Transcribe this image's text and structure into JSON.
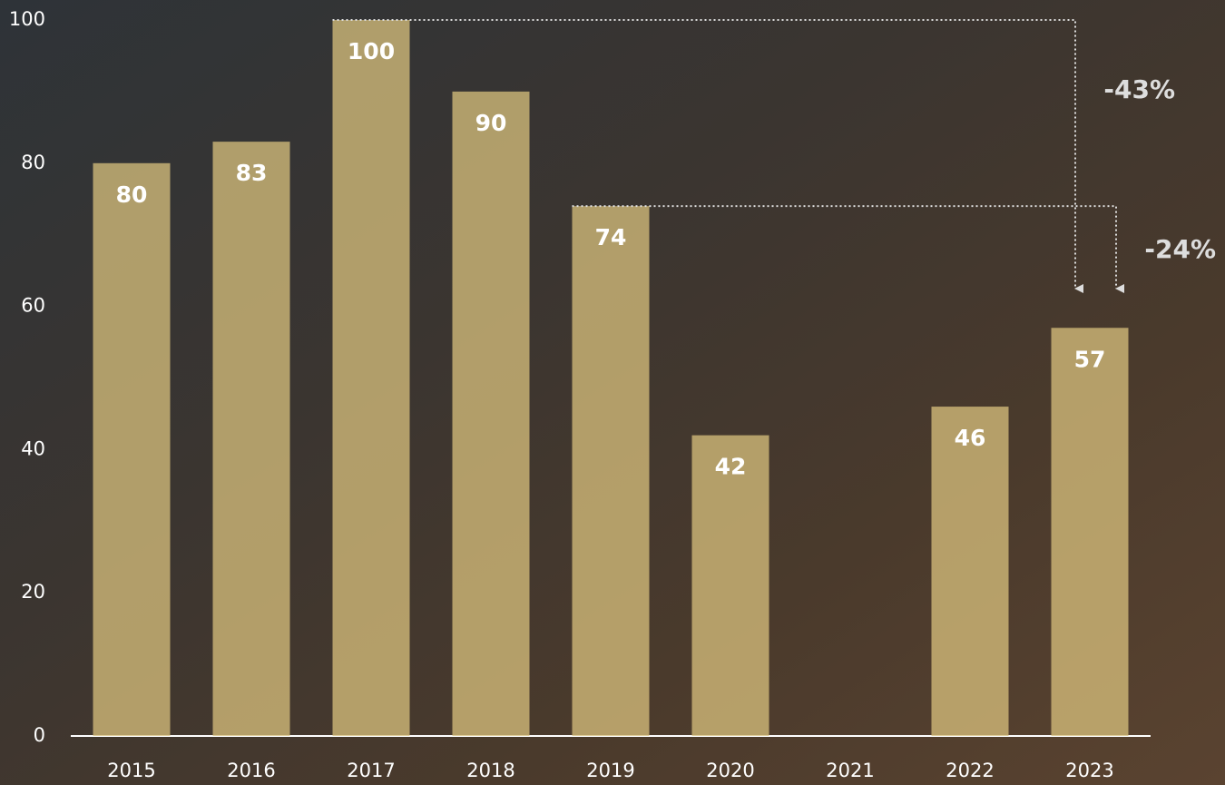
{
  "chart_data": {
    "type": "bar",
    "categories": [
      "2015",
      "2016",
      "2017",
      "2018",
      "2019",
      "2020",
      "2021",
      "2022",
      "2023"
    ],
    "values": [
      80,
      83,
      100,
      90,
      74,
      42,
      null,
      46,
      57
    ],
    "color": "#d9c27e",
    "ylim": [
      0,
      100
    ],
    "yticks": [
      0,
      20,
      40,
      60,
      80,
      100
    ],
    "annotations": [
      "-43%",
      "-24%"
    ]
  }
}
